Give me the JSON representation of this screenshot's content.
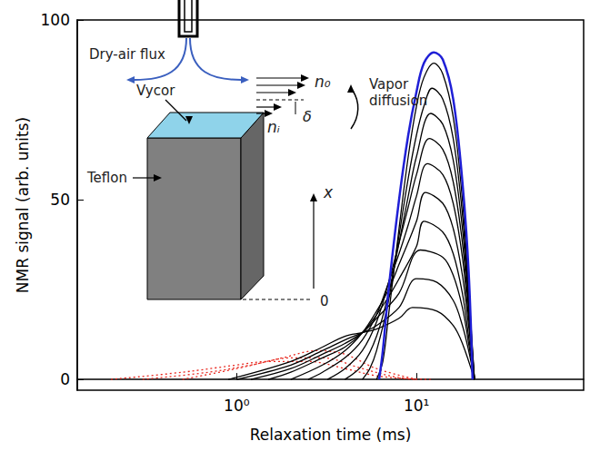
{
  "chart_data": {
    "type": "line",
    "x_label": "Relaxation time (ms)",
    "y_label": "NMR signal (arb. units)",
    "log": "x",
    "xlim": [
      0.13,
      85
    ],
    "xticks": [
      {
        "value": 1,
        "label": "10⁰"
      },
      {
        "value": 10,
        "label": "10¹"
      }
    ],
    "ylim": [
      -3,
      100
    ],
    "yticks": [
      0,
      50,
      100
    ],
    "grid": false,
    "series": [
      {
        "color": "#e8261d",
        "line_style": "dotted",
        "x": [
          0.2,
          0.5,
          1,
          1.5,
          2.5,
          4,
          6,
          10
        ],
        "values": [
          0,
          2,
          4,
          5,
          5,
          3,
          1,
          0
        ]
      },
      {
        "color": "#e8261d",
        "line_style": "dotted",
        "x": [
          0.3,
          0.7,
          1.2,
          2,
          3,
          5,
          8,
          12
        ],
        "values": [
          0,
          2,
          4,
          6,
          6,
          3,
          0.5,
          0
        ]
      },
      {
        "color": "#e8261d",
        "line_style": "dotted",
        "x": [
          0.5,
          1,
          1.8,
          2.8,
          4,
          6,
          10
        ],
        "values": [
          0,
          3,
          6,
          8,
          7,
          3,
          0
        ]
      },
      {
        "color": "#000000",
        "line_style": "solid",
        "x": [
          0.9,
          2,
          3,
          4,
          5,
          6,
          8,
          9.5,
          13,
          16,
          18,
          21
        ],
        "values": [
          0,
          5,
          9,
          12,
          13,
          14,
          17,
          20,
          19,
          15,
          10,
          0
        ]
      },
      {
        "color": "#000000",
        "line_style": "solid",
        "x": [
          1,
          2,
          3,
          4,
          5,
          6,
          8,
          10,
          13,
          16,
          18,
          19.5,
          21
        ],
        "values": [
          0,
          4,
          8,
          11,
          13,
          15,
          20,
          28,
          27,
          22,
          15,
          8,
          0
        ]
      },
      {
        "color": "#000000",
        "line_style": "solid",
        "x": [
          1.2,
          2,
          3,
          4,
          5,
          6,
          8,
          10.5,
          14,
          16,
          18,
          19.5,
          21
        ],
        "values": [
          0,
          3,
          7,
          10,
          13,
          17,
          24,
          36,
          34,
          29,
          20,
          10,
          0
        ]
      },
      {
        "color": "#000000",
        "line_style": "solid",
        "x": [
          1.5,
          2,
          3,
          4,
          5,
          6,
          7,
          8,
          10,
          11,
          14,
          16,
          18,
          19.5,
          21
        ],
        "values": [
          0,
          2,
          6,
          9,
          13,
          18,
          23,
          28,
          37,
          44,
          41,
          35,
          24,
          12,
          0
        ]
      },
      {
        "color": "#000000",
        "line_style": "solid",
        "x": [
          2,
          3,
          4,
          5,
          6,
          7,
          8,
          10,
          11.2,
          14,
          16,
          18,
          19.5,
          21
        ],
        "values": [
          0,
          4,
          8,
          13,
          19,
          25,
          32,
          44,
          52,
          49,
          42,
          29,
          15,
          0
        ]
      },
      {
        "color": "#000000",
        "line_style": "solid",
        "x": [
          2.5,
          3,
          4,
          5,
          6,
          7,
          8,
          9,
          10,
          11.5,
          14,
          16,
          18,
          19.5,
          21
        ],
        "values": [
          0,
          2,
          6,
          11,
          18,
          27,
          35,
          43,
          51,
          60,
          57,
          49,
          34,
          17,
          0
        ]
      },
      {
        "color": "#000000",
        "line_style": "solid",
        "x": [
          3.2,
          4,
          5,
          6,
          7,
          8,
          9,
          10,
          11.8,
          14,
          16,
          18,
          19.5,
          21
        ],
        "values": [
          0,
          3,
          8,
          16,
          27,
          38,
          48,
          57,
          67,
          64,
          55,
          38,
          19,
          0
        ]
      },
      {
        "color": "#000000",
        "line_style": "solid",
        "x": [
          4,
          5,
          6,
          7,
          8,
          9,
          10,
          12,
          14,
          16,
          18,
          19.5,
          21
        ],
        "values": [
          0,
          4,
          12,
          24,
          38,
          51,
          62,
          74,
          71,
          61,
          42,
          21,
          0
        ]
      },
      {
        "color": "#000000",
        "line_style": "solid",
        "x": [
          5,
          5.5,
          6,
          7,
          8,
          9,
          10,
          11,
          12.2,
          14,
          16,
          18,
          19.5,
          21
        ],
        "values": [
          0,
          3,
          8,
          22,
          40,
          56,
          68,
          76,
          81,
          78,
          67,
          46,
          23,
          0
        ]
      },
      {
        "color": "#000000",
        "line_style": "solid",
        "x": [
          6,
          6.5,
          7,
          8,
          9,
          10,
          11,
          12.5,
          14,
          16,
          18,
          19.5,
          21
        ],
        "values": [
          0,
          5,
          18,
          42,
          62,
          76,
          84,
          88,
          85,
          73,
          50,
          25,
          0
        ]
      },
      {
        "color": "#1f1fd6",
        "line_style": "solid",
        "x": [
          6.2,
          6.5,
          7,
          8,
          9,
          10,
          11,
          12.5,
          14,
          16,
          18,
          19.5,
          20.5
        ],
        "values": [
          0,
          8,
          25,
          50,
          68,
          80,
          88,
          91,
          89,
          78,
          55,
          30,
          0
        ]
      }
    ],
    "annotations": [
      "Dry-air flux",
      "Vycor",
      "Teflon",
      "n₀",
      "δ",
      "nᵢ",
      "Vapor diffusion",
      "x",
      "0"
    ]
  }
}
